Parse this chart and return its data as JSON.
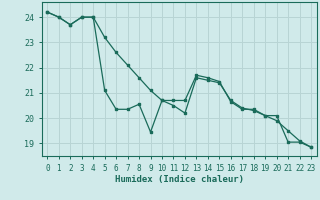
{
  "line1_x": [
    0,
    1,
    2,
    3,
    4,
    5,
    6,
    7,
    8,
    9,
    10,
    11,
    12,
    13,
    14,
    15,
    16,
    17,
    18,
    19,
    20,
    21,
    22,
    23
  ],
  "line1_y": [
    24.2,
    24.0,
    23.7,
    24.0,
    24.0,
    23.2,
    22.6,
    22.1,
    21.6,
    21.1,
    20.7,
    20.5,
    20.2,
    21.6,
    21.5,
    21.4,
    20.7,
    20.4,
    20.3,
    20.1,
    19.9,
    19.5,
    19.1,
    18.85
  ],
  "line2_x": [
    0,
    1,
    2,
    3,
    4,
    5,
    6,
    7,
    8,
    9,
    10,
    11,
    12,
    13,
    14,
    15,
    16,
    17,
    18,
    19,
    20,
    21,
    22,
    23
  ],
  "line2_y": [
    24.2,
    24.0,
    23.7,
    24.0,
    24.0,
    21.1,
    20.35,
    20.35,
    20.55,
    19.45,
    20.7,
    20.7,
    20.7,
    21.7,
    21.6,
    21.45,
    20.65,
    20.35,
    20.35,
    20.1,
    20.1,
    19.05,
    19.05,
    18.85
  ],
  "color": "#1a6b5a",
  "bg_color": "#d0eaea",
  "grid_major_color": "#b8d4d4",
  "grid_minor_color": "#c8e0e0",
  "xlabel": "Humidex (Indice chaleur)",
  "ylim": [
    18.5,
    24.6
  ],
  "xlim": [
    -0.5,
    23.5
  ],
  "yticks": [
    19,
    20,
    21,
    22,
    23,
    24
  ],
  "xticks": [
    0,
    1,
    2,
    3,
    4,
    5,
    6,
    7,
    8,
    9,
    10,
    11,
    12,
    13,
    14,
    15,
    16,
    17,
    18,
    19,
    20,
    21,
    22,
    23
  ],
  "xlabel_fontsize": 6.5,
  "ytick_fontsize": 6,
  "xtick_fontsize": 5.5
}
